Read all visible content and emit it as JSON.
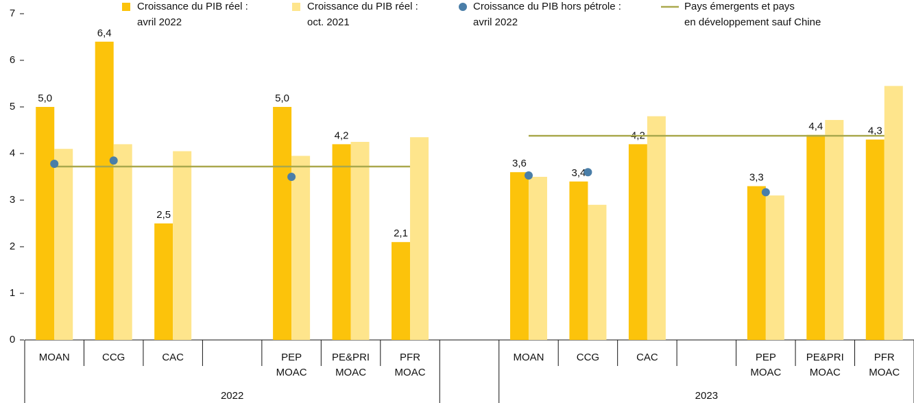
{
  "chart_data": {
    "type": "bar",
    "categories": [
      "MOAN",
      "CCG",
      "CAC",
      null,
      "PEP MOAC",
      "PE&PRI MOAC",
      "PFR MOAC",
      null,
      "MOAN",
      "CCG",
      "CAC",
      null,
      "PEP MOAC",
      "PE&PRI MOAC",
      "PFR MOAC"
    ],
    "groups": [
      "2022",
      "2023"
    ],
    "series": [
      {
        "name": [
          "Croissance du PIB réel :",
          "avril 2022"
        ],
        "type": "bar",
        "color": "#fcc30b",
        "values": [
          5.0,
          6.4,
          2.5,
          null,
          5.0,
          4.2,
          2.1,
          null,
          3.6,
          3.4,
          4.2,
          null,
          3.3,
          4.4,
          4.3
        ],
        "value_labels": [
          "5,0",
          "6,4",
          "2,5",
          null,
          "5,0",
          "4,2",
          "2,1",
          null,
          "3,6",
          "3,4",
          "4,2",
          null,
          "3,3",
          "4,4",
          "4,3"
        ]
      },
      {
        "name": [
          "Croissance du PIB réel :",
          "oct. 2021"
        ],
        "type": "bar",
        "color": "#fee58c",
        "values": [
          4.1,
          4.2,
          4.05,
          null,
          3.95,
          4.25,
          4.35,
          null,
          3.5,
          2.9,
          4.8,
          null,
          3.1,
          4.72,
          5.45
        ]
      },
      {
        "name": [
          "Croissance du PIB hors pétrole :",
          "avril 2022"
        ],
        "type": "scatter",
        "color": "#4a7ea8",
        "values": [
          3.78,
          3.85,
          null,
          null,
          3.5,
          null,
          null,
          null,
          3.53,
          3.6,
          null,
          null,
          3.17,
          null,
          null
        ]
      },
      {
        "name": [
          "Pays émergents et pays",
          "en développement sauf Chine"
        ],
        "type": "line",
        "color": "#a9a84c",
        "values": [
          3.72,
          3.72,
          3.72,
          3.72,
          3.72,
          3.72,
          3.72,
          null,
          4.38,
          4.38,
          4.38,
          4.38,
          4.38,
          4.38,
          4.38
        ]
      }
    ],
    "ylim": [
      0,
      7
    ],
    "yticks": [
      0,
      1,
      2,
      3,
      4,
      5,
      6,
      7
    ]
  }
}
